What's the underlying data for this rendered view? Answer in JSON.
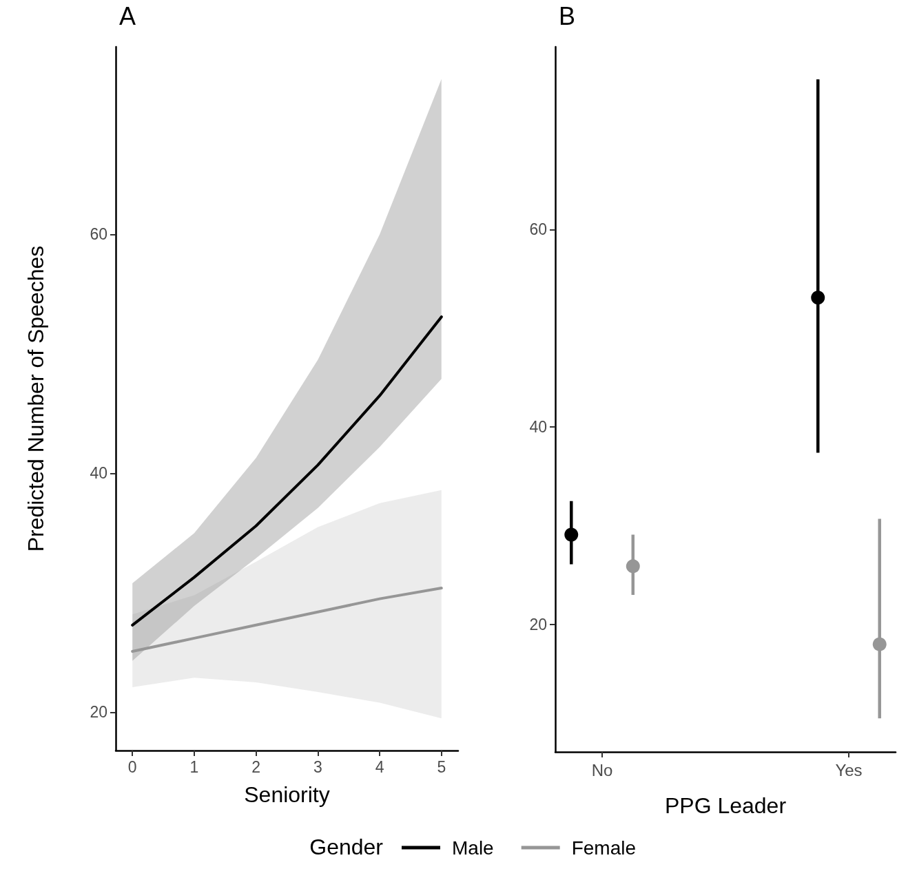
{
  "chart_data": [
    {
      "type": "line",
      "title": "A",
      "xlabel": "Seniority",
      "ylabel": "Predicted Number of Speeches",
      "legend_title": "Gender",
      "legend": "bottom",
      "grid": false,
      "marker": "none",
      "line_style": "solid",
      "x": [
        0,
        1,
        2,
        3,
        4,
        5
      ],
      "xlim": [
        -0.27,
        5.27
      ],
      "xticks": [
        0,
        1,
        2,
        3,
        4,
        5
      ],
      "ylim": [
        16.8,
        75.7
      ],
      "yticks": [
        20,
        40,
        60
      ],
      "series": [
        {
          "name": "Male",
          "color": "#000000",
          "values": [
            27.3,
            31.3,
            35.6,
            40.7,
            46.5,
            53.1
          ],
          "lower": [
            24.3,
            28.9,
            32.9,
            37.1,
            42.2,
            47.9
          ],
          "upper": [
            30.8,
            35.0,
            41.3,
            49.5,
            60.0,
            73.0
          ]
        },
        {
          "name": "Female",
          "color": "#969696",
          "values": [
            25.1,
            26.2,
            27.3,
            28.4,
            29.5,
            30.4
          ],
          "lower": [
            22.1,
            22.9,
            22.5,
            21.7,
            20.8,
            19.5
          ],
          "upper": [
            28.2,
            29.8,
            32.6,
            35.5,
            37.5,
            38.6
          ]
        }
      ]
    },
    {
      "type": "scatter",
      "title": "B",
      "xlabel": "PPG Leader",
      "grid": false,
      "marker": "circle",
      "categories": [
        "No",
        "Yes"
      ],
      "ylim": [
        7.1,
        78.5
      ],
      "yticks": [
        20,
        40,
        60
      ],
      "series": [
        {
          "color": "#000000",
          "values": [
            29.1,
            53.1
          ],
          "errors": [
            [
              26.1,
              32.5
            ],
            [
              37.4,
              75.2
            ]
          ]
        },
        {
          "color": "#969696",
          "values": [
            25.9,
            18.0
          ],
          "errors": [
            [
              23.0,
              29.1
            ],
            [
              10.5,
              30.7
            ]
          ]
        }
      ]
    }
  ]
}
